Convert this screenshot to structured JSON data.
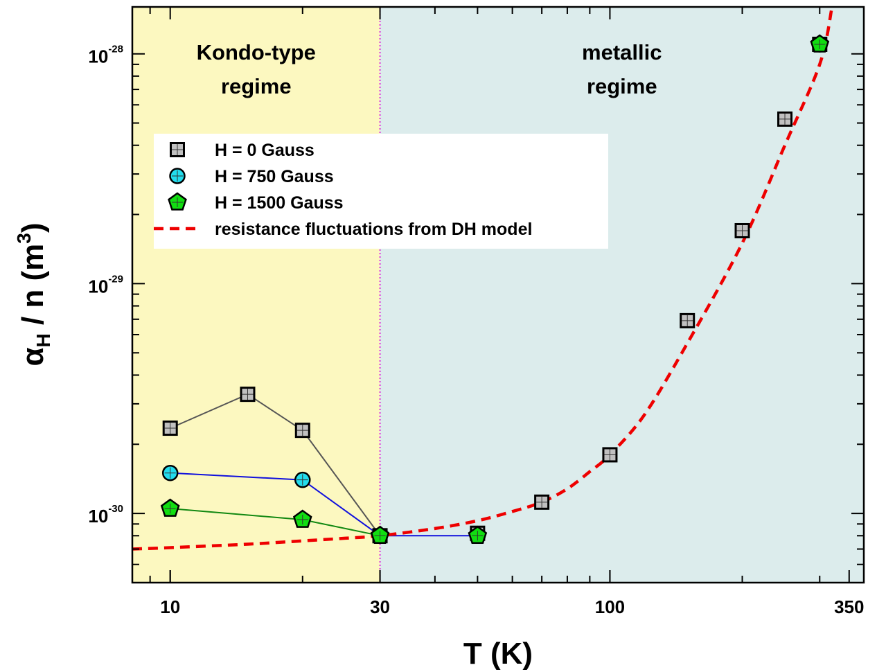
{
  "chart_data": {
    "type": "scatter",
    "xlabel": "T (K)",
    "ylabel": {
      "prefix": "α",
      "subscript": "H",
      "middle": " / n  (m",
      "superscript": "3",
      "suffix": ")"
    },
    "xscale": "log",
    "yscale": "log",
    "xlim": [
      8.2,
      378
    ],
    "ylim": [
      5e-31,
      1.6e-28
    ],
    "x_ticks": [
      10,
      30,
      100,
      350
    ],
    "x_tick_labels": [
      "10",
      "30",
      "100",
      "350"
    ],
    "y_ticks": [
      1e-30,
      1e-29,
      1e-28
    ],
    "y_tick_labels": [
      {
        "base": "10",
        "exp": "-30"
      },
      {
        "base": "10",
        "exp": "-29"
      },
      {
        "base": "10",
        "exp": "-28"
      }
    ],
    "regions": [
      {
        "label_lines": [
          "Kondo-type",
          "regime"
        ],
        "x_range": [
          8.2,
          30
        ],
        "color": "#fcf8c0"
      },
      {
        "label_lines": [
          "metallic",
          "regime"
        ],
        "x_range": [
          30,
          378
        ],
        "color": "#dcecec"
      }
    ],
    "boundary_x": 30,
    "legend": {
      "position": "upper-left"
    },
    "series": [
      {
        "name": "H = 0 Gauss",
        "marker": "square",
        "color": "#c0c0c0",
        "line_color": "#555555",
        "connect": [
          0,
          1,
          2,
          3
        ],
        "x": [
          10,
          15,
          20,
          30,
          50,
          70,
          100,
          150,
          200,
          250,
          300
        ],
        "y": [
          2.35e-30,
          3.3e-30,
          2.3e-30,
          8e-31,
          8.2e-31,
          1.12e-30,
          1.8e-30,
          6.9e-30,
          1.7e-29,
          5.2e-29,
          1.1e-28
        ]
      },
      {
        "name": "H = 750 Gauss",
        "marker": "circle",
        "color": "#22ddee",
        "line_color": "#1010dd",
        "connect": [
          0,
          1,
          2,
          3
        ],
        "x": [
          10,
          20,
          30,
          50,
          300
        ],
        "y": [
          1.5e-30,
          1.4e-30,
          8e-31,
          8e-31,
          1.1e-28
        ]
      },
      {
        "name": "H = 1500 Gauss",
        "marker": "pentagon",
        "color": "#11dd11",
        "line_color": "#118811",
        "connect": [
          0,
          1,
          2
        ],
        "x": [
          10,
          20,
          30,
          50,
          300
        ],
        "y": [
          1.05e-30,
          9.4e-31,
          8e-31,
          8e-31,
          1.1e-28
        ]
      }
    ],
    "fit": {
      "name": "resistance fluctuations from DH model",
      "style": "dashed",
      "color": "#ee0000",
      "x": [
        8.2,
        10,
        15,
        20,
        25,
        30,
        40,
        50,
        60,
        70,
        80,
        90,
        100,
        120,
        150,
        200,
        250,
        300,
        320
      ],
      "y": [
        7e-31,
        7.1e-31,
        7.35e-31,
        7.6e-31,
        7.8e-31,
        8e-31,
        8.6e-31,
        9.3e-31,
        1.02e-30,
        1.12e-30,
        1.28e-30,
        1.52e-30,
        1.8e-30,
        2.7e-30,
        5.5e-30,
        1.5e-29,
        4e-29,
        9e-29,
        1.6e-28
      ]
    }
  }
}
